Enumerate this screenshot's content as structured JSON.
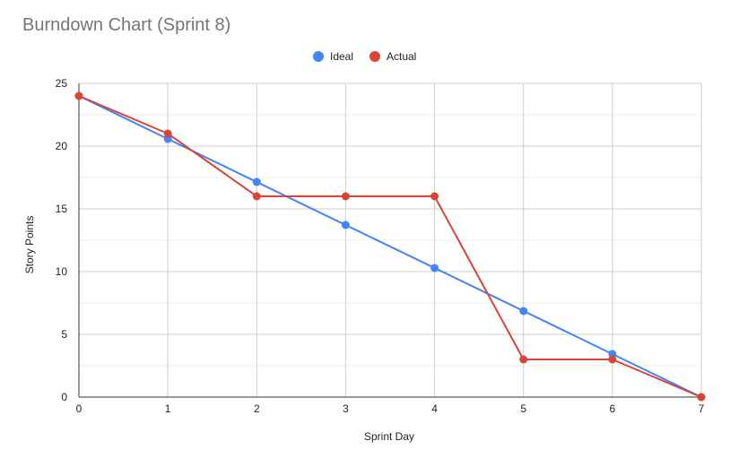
{
  "chart_data": {
    "type": "line",
    "title": "Burndown Chart (Sprint 8)",
    "xlabel": "Sprint Day",
    "ylabel": "Story Points",
    "x": [
      0,
      1,
      2,
      3,
      4,
      5,
      6,
      7
    ],
    "xlim": [
      0,
      7
    ],
    "ylim": [
      0,
      25
    ],
    "yticks": [
      0,
      5,
      10,
      15,
      20,
      25
    ],
    "grid": true,
    "legend_position": "top-center",
    "series": [
      {
        "name": "Ideal",
        "color": "#4285f4",
        "values": [
          24,
          20.57,
          17.14,
          13.71,
          10.29,
          6.86,
          3.43,
          0
        ]
      },
      {
        "name": "Actual",
        "color": "#db4437",
        "values": [
          24,
          21,
          16,
          16,
          16,
          3,
          3,
          0
        ]
      }
    ]
  }
}
